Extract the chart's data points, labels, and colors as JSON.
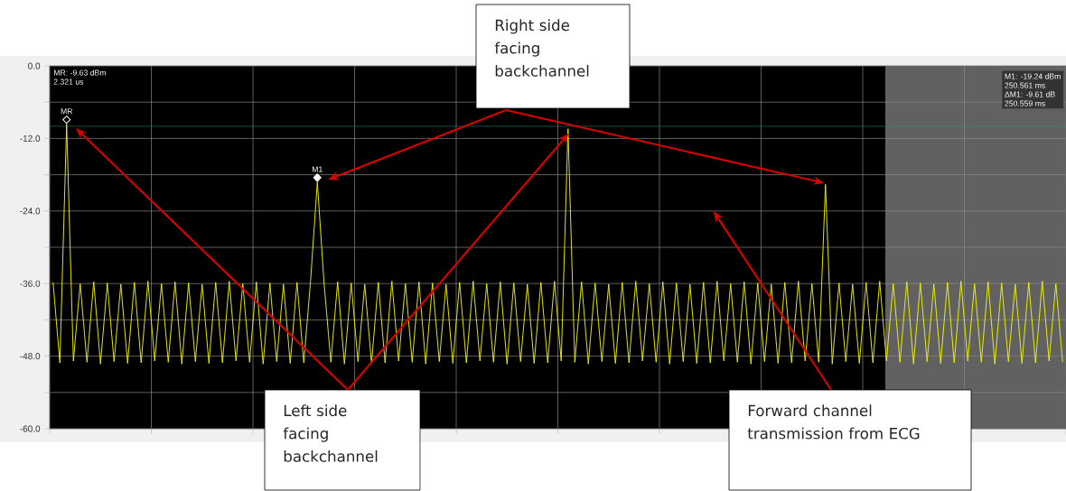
{
  "chart_data": {
    "type": "line",
    "categories": [
      null,
      null,
      null,
      null,
      null,
      null,
      null,
      null,
      null,
      null,
      null,
      null,
      null,
      null,
      null,
      null,
      null,
      null,
      null,
      null,
      null,
      null,
      null,
      null,
      null,
      null,
      null,
      null,
      null,
      null,
      null,
      null,
      null,
      null,
      null,
      null,
      null,
      null,
      null,
      null,
      null,
      null,
      null,
      null,
      null,
      null,
      null,
      null,
      null,
      null,
      null,
      null,
      null,
      null,
      null,
      null,
      null,
      null,
      null,
      null,
      null,
      null,
      null,
      null,
      null,
      null,
      null,
      null,
      null,
      null,
      null,
      null,
      null,
      null,
      null,
      null,
      null,
      null,
      null,
      null,
      null,
      null,
      null,
      null,
      null,
      null,
      null,
      null,
      null,
      null,
      null,
      null,
      null,
      null,
      null,
      null,
      null,
      null,
      null,
      null,
      null,
      null,
      null,
      null,
      null,
      null,
      null,
      null,
      null,
      null,
      null,
      null,
      null,
      null,
      null,
      null,
      null,
      null,
      null,
      null,
      null,
      null,
      null,
      null,
      null,
      null,
      null,
      null,
      null,
      null,
      null,
      null,
      null,
      null,
      null,
      null,
      null,
      null,
      null,
      null,
      null,
      null,
      null,
      null,
      null,
      null,
      null,
      null,
      null,
      null
    ],
    "series": [
      {
        "color": "#f5f500",
        "values": [
          -35.8,
          -49.1,
          -9.6,
          -48.8,
          -36.0,
          -49.0,
          -35.7,
          -49.3,
          -35.9,
          -48.9,
          -36.1,
          -49.2,
          -35.8,
          -49.1,
          -35.6,
          -48.8,
          -36.0,
          -49.0,
          -35.7,
          -49.3,
          -35.9,
          -48.9,
          -36.1,
          -49.2,
          -35.8,
          -49.1,
          -35.6,
          -48.8,
          -36.0,
          -49.0,
          -35.7,
          -49.3,
          -35.9,
          -48.9,
          -36.1,
          -49.2,
          -35.8,
          -49.1,
          -35.6,
          -19.2,
          -36.0,
          -49.0,
          -35.7,
          -49.3,
          -35.9,
          -48.9,
          -36.1,
          -49.2,
          -35.8,
          -49.1,
          -35.6,
          -48.8,
          -36.0,
          -49.0,
          -35.7,
          -49.3,
          -35.9,
          -48.9,
          -36.1,
          -49.2,
          -35.8,
          -49.1,
          -35.6,
          -48.8,
          -36.0,
          -49.0,
          -35.7,
          -49.3,
          -35.9,
          -48.9,
          -36.1,
          -49.2,
          -35.8,
          -49.1,
          -35.6,
          -48.8,
          -10.4,
          -49.0,
          -35.7,
          -49.3,
          -35.9,
          -48.9,
          -36.1,
          -49.2,
          -35.8,
          -49.1,
          -35.6,
          -48.8,
          -36.0,
          -49.0,
          -35.7,
          -49.3,
          -35.9,
          -48.9,
          -36.1,
          -49.2,
          -35.8,
          -49.1,
          -35.6,
          -48.8,
          -36.0,
          -49.0,
          -35.7,
          -49.3,
          -35.9,
          -48.9,
          -36.1,
          -49.2,
          -35.8,
          -49.1,
          -35.6,
          -48.8,
          -36.0,
          -49.0,
          -19.6,
          -49.3,
          -35.9,
          -48.9,
          -36.1,
          -49.2,
          -35.8,
          -49.1,
          -35.6,
          -48.8,
          -36.0,
          -49.0,
          -35.7,
          -49.3,
          -35.9,
          -48.9,
          -36.1,
          -49.2,
          -35.8,
          -49.1,
          -35.6,
          -48.8,
          -36.0,
          -49.0,
          -35.7,
          -49.3,
          -35.9,
          -48.9,
          -36.1,
          -49.2,
          -35.8,
          -49.1,
          -35.6,
          -48.8,
          -36.0,
          -49.0
        ]
      }
    ],
    "ylim": [
      -60,
      0
    ],
    "yticks": [
      {
        "value": -60,
        "label": "-60.0"
      },
      {
        "value": -54,
        "label": null
      },
      {
        "value": -48,
        "label": "-48.0"
      },
      {
        "value": -42,
        "label": null
      },
      {
        "value": -36,
        "label": "-36.0"
      },
      {
        "value": -30,
        "label": null
      },
      {
        "value": -24,
        "label": "-24.0"
      },
      {
        "value": -18,
        "label": null
      },
      {
        "value": -12,
        "label": "-12.0"
      },
      {
        "value": -6,
        "label": null
      },
      {
        "value": 0,
        "label": "0.0"
      }
    ],
    "tick_labels": "y",
    "grid": true,
    "marker": "none",
    "line_style": "solid",
    "ref_lines": [
      {
        "axis": "y",
        "value": -10,
        "color": "#2a9d8f"
      }
    ],
    "annotations": [
      "MR: -9.63 dBm",
      "2.321 us",
      "M1: -19.24 dBm",
      "250.561 ms",
      "ΔM1: -9.61 dB",
      "250.559 ms",
      {
        "text": "MR",
        "y": -9.6
      },
      {
        "text": "M1",
        "y": -19.2
      },
      "Right side facing backchannel",
      "Left side facing backchannel",
      "Forward channel transmission from ECG"
    ]
  }
}
